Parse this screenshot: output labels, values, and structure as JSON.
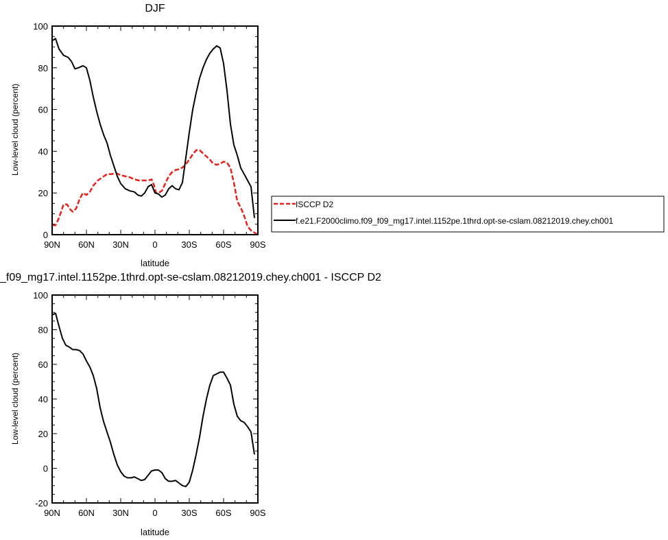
{
  "chart_data": [
    {
      "type": "line",
      "title": "DJF",
      "xlabel": "latitude",
      "ylabel": "Low-level cloud (percent)",
      "xlim": [
        -90,
        90
      ],
      "ylim": [
        0,
        100
      ],
      "x_ticks": [
        -90,
        -60,
        -30,
        0,
        30,
        60,
        90
      ],
      "x_tick_labels": [
        "90N",
        "60N",
        "30N",
        "0",
        "30S",
        "60S",
        "90S"
      ],
      "y_ticks": [
        0,
        20,
        40,
        60,
        80,
        100
      ],
      "y_tick_labels": [
        "0",
        "20",
        "40",
        "60",
        "80",
        "100"
      ],
      "legend_position": "right",
      "series": [
        {
          "name": "ISCCP D2",
          "color": "#e8201a",
          "dash": "dashed",
          "points": [
            [
              -90,
              4.5
            ],
            [
              -87,
              4.5
            ],
            [
              -84,
              8
            ],
            [
              -80,
              14.5
            ],
            [
              -77,
              14.5
            ],
            [
              -74,
              12
            ],
            [
              -72,
              11
            ],
            [
              -69,
              12.5
            ],
            [
              -66,
              17
            ],
            [
              -63,
              20
            ],
            [
              -60,
              19
            ],
            [
              -57,
              20.5
            ],
            [
              -54,
              23.5
            ],
            [
              -50,
              26
            ],
            [
              -46,
              27.5
            ],
            [
              -42,
              29
            ],
            [
              -38,
              29
            ],
            [
              -34,
              29.5
            ],
            [
              -30,
              28.5
            ],
            [
              -26,
              28
            ],
            [
              -22,
              27.5
            ],
            [
              -18,
              26.5
            ],
            [
              -14,
              26
            ],
            [
              -10,
              26
            ],
            [
              -6,
              26
            ],
            [
              -3,
              26.5
            ],
            [
              -1,
              24
            ],
            [
              1,
              20
            ],
            [
              3,
              20
            ],
            [
              6,
              21
            ],
            [
              9,
              24.5
            ],
            [
              12,
              28
            ],
            [
              15,
              30
            ],
            [
              18,
              31
            ],
            [
              22,
              31.5
            ],
            [
              26,
              33
            ],
            [
              30,
              36
            ],
            [
              33,
              38.5
            ],
            [
              36,
              40.5
            ],
            [
              39,
              40.5
            ],
            [
              42,
              39
            ],
            [
              45,
              37.5
            ],
            [
              48,
              36
            ],
            [
              51,
              34
            ],
            [
              54,
              33.5
            ],
            [
              57,
              34
            ],
            [
              60,
              35
            ],
            [
              63,
              34.5
            ],
            [
              66,
              32
            ],
            [
              69,
              25
            ],
            [
              72,
              16
            ],
            [
              75,
              13
            ],
            [
              78,
              9
            ],
            [
              81,
              4
            ],
            [
              84,
              2
            ],
            [
              87,
              1
            ],
            [
              90,
              0
            ]
          ]
        },
        {
          "name": "f.e21.F2000climo.f09_f09_mg17.intel.1152pe.1thrd.opt-se-cslam.08212019.chey.ch001",
          "color": "#000000",
          "dash": "solid",
          "points": [
            [
              -90,
              93
            ],
            [
              -87,
              94
            ],
            [
              -84,
              89
            ],
            [
              -80,
              86
            ],
            [
              -76,
              85
            ],
            [
              -73,
              83
            ],
            [
              -70,
              79.5
            ],
            [
              -67,
              80
            ],
            [
              -63,
              81
            ],
            [
              -60,
              80
            ],
            [
              -57,
              74
            ],
            [
              -54,
              66
            ],
            [
              -51,
              59
            ],
            [
              -48,
              53
            ],
            [
              -45,
              48
            ],
            [
              -42,
              44
            ],
            [
              -39,
              38
            ],
            [
              -36,
              33
            ],
            [
              -33,
              28
            ],
            [
              -30,
              24.5
            ],
            [
              -26,
              22
            ],
            [
              -22,
              21
            ],
            [
              -18,
              20.5
            ],
            [
              -15,
              19
            ],
            [
              -12,
              18.5
            ],
            [
              -9,
              20
            ],
            [
              -6,
              23
            ],
            [
              -3,
              24
            ],
            [
              0,
              20
            ],
            [
              3,
              19.5
            ],
            [
              6,
              18
            ],
            [
              9,
              19
            ],
            [
              12,
              22
            ],
            [
              15,
              23.5
            ],
            [
              18,
              22
            ],
            [
              21,
              21.5
            ],
            [
              24,
              25
            ],
            [
              27,
              37
            ],
            [
              30,
              49
            ],
            [
              33,
              60
            ],
            [
              36,
              68
            ],
            [
              39,
              75
            ],
            [
              42,
              80
            ],
            [
              45,
              84
            ],
            [
              48,
              87
            ],
            [
              51,
              89
            ],
            [
              54,
              90.5
            ],
            [
              57,
              89.5
            ],
            [
              60,
              82
            ],
            [
              63,
              69
            ],
            [
              66,
              53
            ],
            [
              69,
              43
            ],
            [
              72,
              38
            ],
            [
              75,
              32
            ],
            [
              78,
              29
            ],
            [
              81,
              26
            ],
            [
              84,
              23
            ],
            [
              87,
              8
            ]
          ]
        }
      ]
    },
    {
      "type": "line",
      "title": "_f09_mg17.intel.1152pe.1thrd.opt-se-cslam.08212019.chey.ch001 - ISCCP D2",
      "xlabel": "latitude",
      "ylabel": "Low-level cloud (percent)",
      "xlim": [
        -90,
        90
      ],
      "ylim": [
        -20,
        100
      ],
      "x_ticks": [
        -90,
        -60,
        -30,
        0,
        30,
        60,
        90
      ],
      "x_tick_labels": [
        "90N",
        "60N",
        "30N",
        "0",
        "30S",
        "60S",
        "90S"
      ],
      "y_ticks": [
        -20,
        0,
        20,
        40,
        60,
        80,
        100
      ],
      "y_tick_labels": [
        "-20",
        "0",
        "20",
        "40",
        "60",
        "80",
        "100"
      ],
      "series": [
        {
          "color": "#000000",
          "dash": "solid",
          "points": [
            [
              -90,
              88.5
            ],
            [
              -87,
              89.5
            ],
            [
              -84,
              82
            ],
            [
              -81,
              75
            ],
            [
              -78,
              71
            ],
            [
              -75,
              70
            ],
            [
              -72,
              68.5
            ],
            [
              -69,
              68.5
            ],
            [
              -66,
              68
            ],
            [
              -63,
              66
            ],
            [
              -60,
              62
            ],
            [
              -57,
              58.5
            ],
            [
              -54,
              53.5
            ],
            [
              -51,
              46
            ],
            [
              -48,
              35
            ],
            [
              -45,
              27
            ],
            [
              -42,
              21
            ],
            [
              -39,
              15
            ],
            [
              -36,
              8
            ],
            [
              -33,
              2
            ],
            [
              -30,
              -2
            ],
            [
              -27,
              -4.5
            ],
            [
              -24,
              -5.5
            ],
            [
              -21,
              -5.5
            ],
            [
              -18,
              -5
            ],
            [
              -15,
              -6
            ],
            [
              -12,
              -7
            ],
            [
              -9,
              -6.5
            ],
            [
              -6,
              -4
            ],
            [
              -3,
              -1.5
            ],
            [
              0,
              -1
            ],
            [
              3,
              -1
            ],
            [
              6,
              -2.5
            ],
            [
              9,
              -6
            ],
            [
              12,
              -7.5
            ],
            [
              15,
              -7.5
            ],
            [
              18,
              -7
            ],
            [
              21,
              -8.5
            ],
            [
              24,
              -10
            ],
            [
              27,
              -10.5
            ],
            [
              30,
              -8
            ],
            [
              33,
              -1
            ],
            [
              36,
              8
            ],
            [
              39,
              18
            ],
            [
              42,
              30
            ],
            [
              45,
              40
            ],
            [
              48,
              48
            ],
            [
              51,
              53.5
            ],
            [
              54,
              54.5
            ],
            [
              57,
              55.5
            ],
            [
              60,
              55.5
            ],
            [
              63,
              52
            ],
            [
              66,
              48
            ],
            [
              69,
              37
            ],
            [
              72,
              30
            ],
            [
              75,
              27.5
            ],
            [
              78,
              26.5
            ],
            [
              81,
              24
            ],
            [
              84,
              21
            ],
            [
              87,
              8
            ]
          ]
        }
      ]
    }
  ]
}
